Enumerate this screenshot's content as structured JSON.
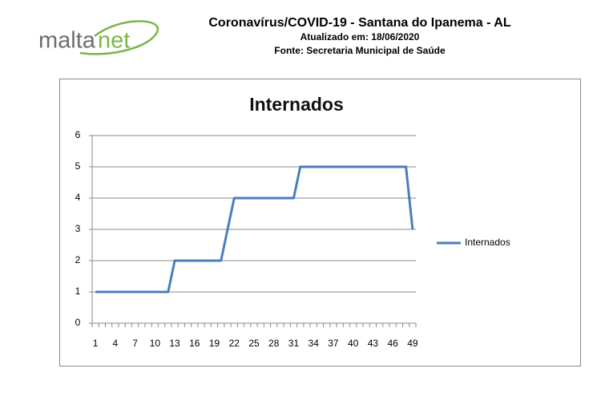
{
  "header": {
    "logo": [
      "malta",
      "net"
    ],
    "title": "Coronavírus/COVID-19 - Santana do Ipanema - AL",
    "updated": "Atualizado em: 18/06/2020",
    "source": "Fonte: Secretaria Municipal de Saúde"
  },
  "chart_data": {
    "type": "line",
    "title": "Internados",
    "categories": [
      1,
      null,
      null,
      4,
      null,
      null,
      7,
      null,
      null,
      10,
      null,
      null,
      13,
      null,
      null,
      16,
      null,
      null,
      19,
      null,
      null,
      22,
      null,
      null,
      25,
      null,
      null,
      28,
      null,
      null,
      31,
      null,
      null,
      34,
      null,
      null,
      37,
      null,
      null,
      40,
      null,
      null,
      43,
      null,
      null,
      46,
      null,
      null,
      49
    ],
    "series": [
      {
        "name": "Internados",
        "color": "#4a7ebb",
        "values": [
          1,
          1,
          1,
          1,
          1,
          1,
          1,
          1,
          1,
          1,
          1,
          1,
          2,
          2,
          2,
          2,
          2,
          2,
          2,
          2,
          3,
          4,
          4,
          4,
          4,
          4,
          4,
          4,
          4,
          4,
          4,
          5,
          5,
          5,
          5,
          5,
          5,
          5,
          5,
          5,
          5,
          5,
          5,
          5,
          5,
          5,
          5,
          5,
          3
        ]
      }
    ],
    "ylim": [
      0,
      6
    ],
    "yticks": [
      0,
      1,
      2,
      3,
      4,
      5,
      6
    ],
    "grid": true,
    "legend": "right"
  }
}
